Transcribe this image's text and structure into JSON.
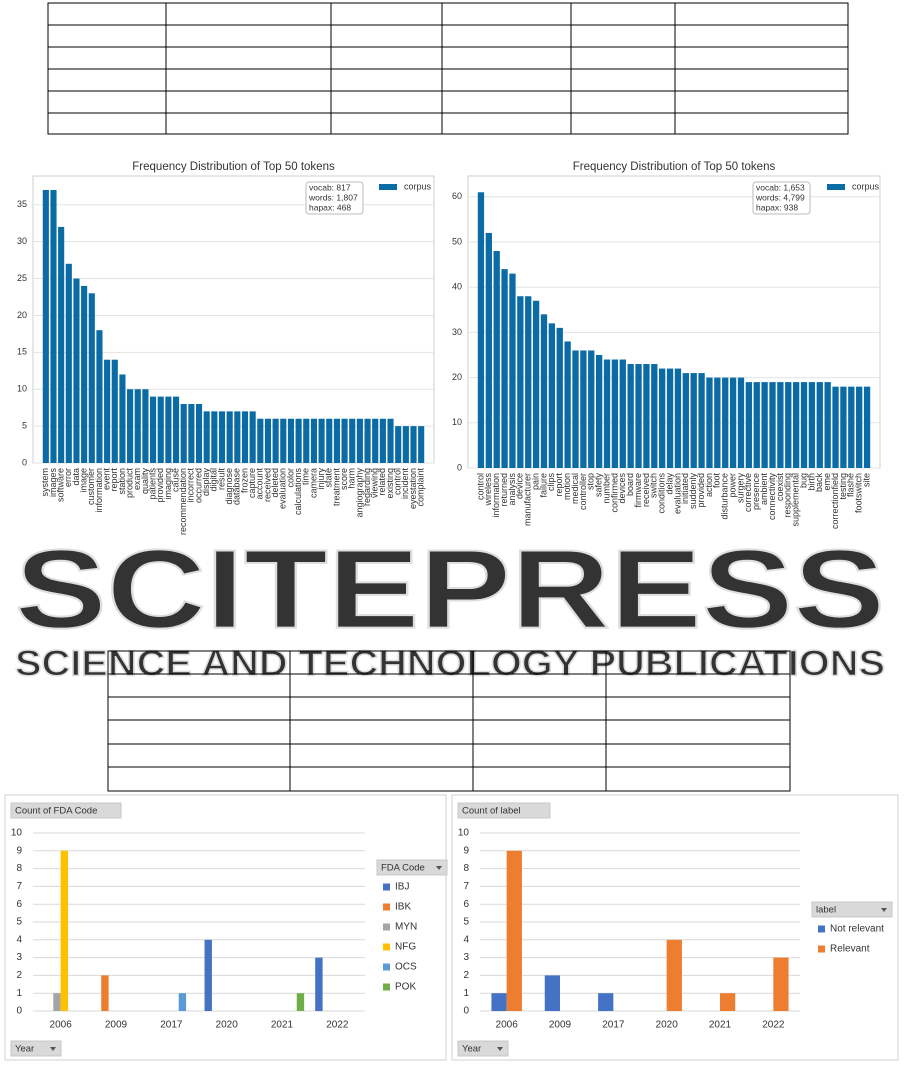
{
  "watermark": {
    "title": "SCITEPRESS",
    "subtitle": "SCIENCE AND TECHNOLOGY PUBLICATIONS"
  },
  "chart_data": [
    {
      "type": "bar",
      "title": "Frequency Distribution of Top 50 tokens",
      "categories": [
        "system",
        "images",
        "software",
        "error",
        "data",
        "image",
        "customer",
        "information",
        "event",
        "report",
        "station",
        "product",
        "exam",
        "quality",
        "patients",
        "provided",
        "imaging",
        "cause",
        "recommendation",
        "incorrect",
        "occurred",
        "display",
        "digital",
        "result",
        "diagnose",
        "database",
        "frozen",
        "capture",
        "account",
        "received",
        "deleted",
        "evaluation",
        "color",
        "calculations",
        "time",
        "camera",
        "injury",
        "state",
        "treatment",
        "score",
        "harm",
        "angiography",
        "regarding",
        "viewing",
        "related",
        "existing",
        "control",
        "incident",
        "eyestation",
        "complaint"
      ],
      "series": [
        {
          "name": "corpus",
          "color": "#0b6ba5",
          "values": [
            37,
            37,
            32,
            27,
            25,
            24,
            23,
            18,
            14,
            14,
            12,
            10,
            10,
            10,
            9,
            9,
            9,
            9,
            8,
            8,
            8,
            7,
            7,
            7,
            7,
            7,
            7,
            7,
            6,
            6,
            6,
            6,
            6,
            6,
            6,
            6,
            6,
            6,
            6,
            6,
            6,
            6,
            6,
            6,
            6,
            6,
            5,
            5,
            5,
            5
          ]
        }
      ],
      "annotations": [
        "vocab: 817",
        "words: 1,807",
        "hapax: 468"
      ],
      "ylim": [
        0,
        38.9
      ],
      "yticks": [
        0,
        5,
        10,
        15,
        20,
        25,
        30,
        35
      ],
      "grid": true,
      "legend": "upper right"
    },
    {
      "type": "bar",
      "title": "Frequency Distribution of Top 50 tokens",
      "categories": [
        "control",
        "wireless",
        "information",
        "returned",
        "analysis",
        "device",
        "manufacturer",
        "pain",
        "failure",
        "clips",
        "report",
        "motion",
        "medical",
        "controller",
        "stop",
        "safety",
        "number",
        "confirmed",
        "devices",
        "board",
        "firmware",
        "received",
        "switch",
        "conditions",
        "delay",
        "evaluation",
        "initiated",
        "suddenly",
        "provided",
        "action",
        "foot",
        "disturbance",
        "power",
        "surgery",
        "corrective",
        "presence",
        "ambient",
        "connectivity",
        "coexist",
        "responding",
        "supplemental",
        "bug",
        "birth",
        "back",
        "eme",
        "correctionfield",
        "testing",
        "flashe",
        "footswitch",
        "site"
      ],
      "series": [
        {
          "name": "corpus",
          "color": "#0b6ba5",
          "values": [
            61,
            52,
            48,
            44,
            43,
            38,
            38,
            37,
            34,
            32,
            31,
            28,
            26,
            26,
            26,
            25,
            24,
            24,
            24,
            23,
            23,
            23,
            23,
            22,
            22,
            22,
            21,
            21,
            21,
            20,
            20,
            20,
            20,
            20,
            19,
            19,
            19,
            19,
            19,
            19,
            19,
            19,
            19,
            19,
            19,
            18,
            18,
            18,
            18,
            18
          ]
        }
      ],
      "annotations": [
        "vocab: 1,653",
        "words: 4,799",
        "hapax: 938"
      ],
      "ylim": [
        0,
        64.6
      ],
      "yticks": [
        0,
        10,
        20,
        30,
        40,
        50,
        60
      ],
      "grid": true,
      "legend": "upper right"
    },
    {
      "type": "pivot-bar",
      "y_field": "Count of FDA Code",
      "x_field": "Year",
      "legend_title": "FDA Code",
      "categories": [
        "2006",
        "2009",
        "2017",
        "2020",
        "2021",
        "2022"
      ],
      "series": [
        {
          "name": "IBJ",
          "color": "#4472c4",
          "values": [
            null,
            null,
            null,
            4,
            null,
            3
          ]
        },
        {
          "name": "IBK",
          "color": "#ed7d31",
          "values": [
            null,
            2,
            null,
            null,
            null,
            null
          ]
        },
        {
          "name": "MYN",
          "color": "#a5a5a5",
          "values": [
            1,
            null,
            null,
            null,
            null,
            null
          ]
        },
        {
          "name": "NFG",
          "color": "#ffc000",
          "values": [
            9,
            null,
            null,
            null,
            null,
            null
          ]
        },
        {
          "name": "OCS",
          "color": "#5b9bd5",
          "values": [
            null,
            null,
            1,
            null,
            null,
            null
          ]
        },
        {
          "name": "POK",
          "color": "#70ad47",
          "values": [
            null,
            null,
            null,
            null,
            1,
            null
          ]
        }
      ],
      "ylim": [
        0,
        10
      ],
      "yticks": [
        0,
        1,
        2,
        3,
        4,
        5,
        6,
        7,
        8,
        9,
        10
      ],
      "grid": true,
      "legend": "right"
    },
    {
      "type": "pivot-bar",
      "y_field": "Count of label",
      "x_field": "Year",
      "legend_title": "label",
      "categories": [
        "2006",
        "2009",
        "2017",
        "2020",
        "2021",
        "2022"
      ],
      "series": [
        {
          "name": "Not relevant",
          "color": "#4472c4",
          "values": [
            1,
            2,
            1,
            null,
            null,
            null
          ]
        },
        {
          "name": "Relevant",
          "color": "#ed7d31",
          "values": [
            9,
            null,
            null,
            4,
            1,
            3
          ]
        }
      ],
      "ylim": [
        0,
        10
      ],
      "yticks": [
        0,
        1,
        2,
        3,
        4,
        5,
        6,
        7,
        8,
        9,
        10
      ],
      "grid": true,
      "legend": "right"
    }
  ]
}
